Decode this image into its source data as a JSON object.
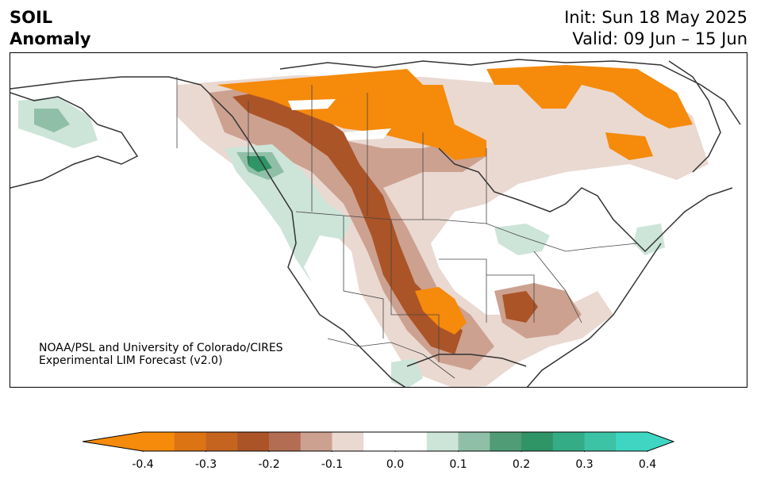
{
  "header": {
    "title_line1": "SOIL",
    "title_line2": "Anomaly",
    "init_text": "Init: Sun 18 May 2025",
    "valid_text": "Valid: 09 Jun – 15 Jun"
  },
  "credit": {
    "line1": "NOAA/PSL and University of Colorado/CIRES",
    "line2": "Experimental LIM Forecast (v2.0)"
  },
  "colorbar": {
    "levels": [
      -0.4,
      -0.35,
      -0.3,
      -0.25,
      -0.2,
      -0.15,
      -0.1,
      -0.05,
      0.05,
      0.1,
      0.15,
      0.2,
      0.25,
      0.3,
      0.35,
      0.4
    ],
    "colors": [
      "#f58a0b",
      "#dc7414",
      "#c4641f",
      "#ab5428",
      "#b36d52",
      "#cca190",
      "#ead9d1",
      "#ffffff",
      "#cde4d9",
      "#8fc0a7",
      "#4f9c76",
      "#2f9466",
      "#34ac86",
      "#3cc2a4",
      "#3ed6c2"
    ],
    "under_color": "#f58a0b",
    "over_color": "#3ed6c2",
    "tick_labels": [
      "-0.4",
      "-0.3",
      "-0.2",
      "-0.1",
      "0.0",
      "0.1",
      "0.2",
      "0.3",
      "0.4"
    ]
  },
  "map": {
    "projection": "polar stereographic (North America)",
    "colors": {
      "dry_strong": "#f58a0b",
      "dry_mid": "#c4641f",
      "dry_weak": "#cca190",
      "dry_faint": "#ead9d1",
      "wet_faint": "#cde4d9",
      "wet_mid": "#8fc0a7",
      "wet_strong": "#2f9466",
      "coast": "#333333"
    }
  }
}
